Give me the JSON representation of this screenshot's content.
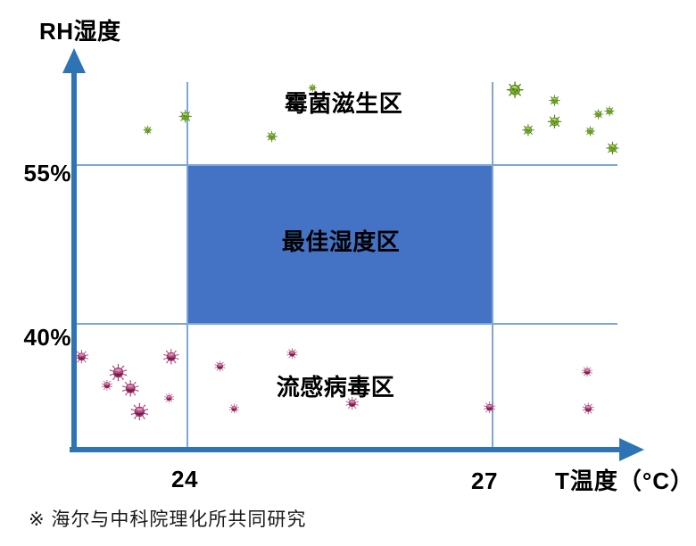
{
  "colors": {
    "axis": "#2e74b5",
    "grid": "#7da7d8",
    "optimal_fill": "#4472c4",
    "mold_green": "#76b82a",
    "virus_magenta": "#b3457c",
    "text": "#000000",
    "footnote_text": "#1a1a1a"
  },
  "chart_data": {
    "type": "scatter",
    "title": "",
    "x_axis": {
      "title": "T温度（°C）",
      "ticks": [
        {
          "label": "24",
          "value": 24
        },
        {
          "label": "27",
          "value": 27
        }
      ],
      "range": [
        22.9,
        28.3
      ],
      "grid": true
    },
    "y_axis": {
      "title": "RH湿度",
      "ticks": [
        {
          "label": "55%",
          "value": 55
        },
        {
          "label": "40%",
          "value": 40
        }
      ],
      "range": [
        28,
        64
      ],
      "grid": true
    },
    "regions": [
      {
        "name": "mold-growth-zone",
        "label": "霉菌滋生区",
        "condition": "RH > 55%"
      },
      {
        "name": "optimal-humidity-zone",
        "label": "最佳湿度区",
        "condition": "24-27°C, 40-55% RH",
        "t_min": 24,
        "t_max": 27,
        "rh_min": 40,
        "rh_max": 55
      },
      {
        "name": "flu-virus-zone",
        "label": "流感病毒区",
        "condition": "RH < 40%"
      }
    ],
    "series": [
      {
        "name": "mold",
        "icon": "mold-icon",
        "points": [
          {
            "t": 23.61,
            "rh": 58.3,
            "size": 10
          },
          {
            "t": 23.98,
            "rh": 59.6,
            "size": 14
          },
          {
            "t": 25.23,
            "rh": 62.3,
            "size": 9
          },
          {
            "t": 24.83,
            "rh": 57.7,
            "size": 12
          },
          {
            "t": 27.22,
            "rh": 62.1,
            "size": 18
          },
          {
            "t": 27.61,
            "rh": 61.1,
            "size": 12
          },
          {
            "t": 27.61,
            "rh": 59.1,
            "size": 15
          },
          {
            "t": 27.35,
            "rh": 58.3,
            "size": 13
          },
          {
            "t": 28.04,
            "rh": 59.8,
            "size": 11
          },
          {
            "t": 28.15,
            "rh": 60.1,
            "size": 11
          },
          {
            "t": 27.96,
            "rh": 58.2,
            "size": 11
          },
          {
            "t": 28.18,
            "rh": 56.6,
            "size": 14
          }
        ]
      },
      {
        "name": "flu-virus",
        "icon": "virus-icon",
        "points": [
          {
            "t": 22.96,
            "rh": 36.9,
            "size": 14
          },
          {
            "t": 23.84,
            "rh": 36.9,
            "size": 16
          },
          {
            "t": 23.32,
            "rh": 35.4,
            "size": 18
          },
          {
            "t": 23.21,
            "rh": 34.2,
            "size": 11
          },
          {
            "t": 23.44,
            "rh": 33.9,
            "size": 17
          },
          {
            "t": 23.82,
            "rh": 33.0,
            "size": 10
          },
          {
            "t": 23.53,
            "rh": 31.7,
            "size": 18
          },
          {
            "t": 24.32,
            "rh": 36.0,
            "size": 11
          },
          {
            "t": 24.46,
            "rh": 32.0,
            "size": 10
          },
          {
            "t": 25.03,
            "rh": 37.2,
            "size": 11
          },
          {
            "t": 25.62,
            "rh": 32.5,
            "size": 13
          },
          {
            "t": 26.97,
            "rh": 32.1,
            "size": 12
          },
          {
            "t": 27.93,
            "rh": 35.5,
            "size": 11
          },
          {
            "t": 27.94,
            "rh": 32.0,
            "size": 12
          }
        ]
      }
    ],
    "footnote": "※ 海尔与中科院理化所共同研究"
  }
}
